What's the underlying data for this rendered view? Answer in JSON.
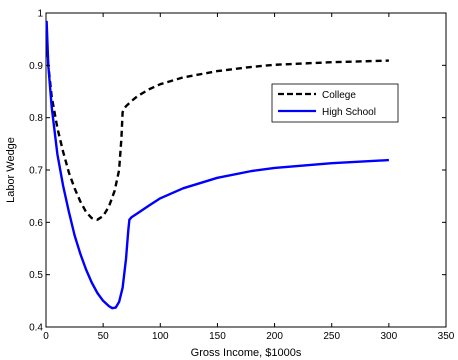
{
  "chart_data": {
    "type": "line",
    "title": "",
    "xlabel": "Gross Income, $1000s",
    "ylabel": "Labor Wedge",
    "xlim": [
      0,
      350
    ],
    "ylim": [
      0.4,
      1.0
    ],
    "xticks": [
      0,
      50,
      100,
      150,
      200,
      250,
      300,
      350
    ],
    "yticks": [
      0.4,
      0.5,
      0.6,
      0.7,
      0.8,
      0.9,
      1.0
    ],
    "xtick_labels": [
      "0",
      "50",
      "100",
      "150",
      "200",
      "250",
      "300",
      "350"
    ],
    "ytick_labels": [
      "0.4",
      "0.5",
      "0.6",
      "0.7",
      "0.8",
      "0.9",
      "1"
    ],
    "grid": false,
    "legend_position": "upper-right",
    "series": [
      {
        "name": "College",
        "style": "dashed",
        "color": "#000000",
        "x": [
          0.5,
          2,
          5,
          10,
          15,
          20,
          25,
          30,
          35,
          40,
          45,
          50,
          55,
          60,
          64,
          66,
          67,
          68,
          70,
          75,
          80,
          90,
          100,
          120,
          150,
          180,
          200,
          250,
          300
        ],
        "y": [
          0.965,
          0.9,
          0.84,
          0.78,
          0.735,
          0.695,
          0.665,
          0.64,
          0.62,
          0.608,
          0.605,
          0.612,
          0.63,
          0.66,
          0.7,
          0.76,
          0.81,
          0.816,
          0.822,
          0.832,
          0.841,
          0.854,
          0.864,
          0.877,
          0.889,
          0.897,
          0.901,
          0.906,
          0.909
        ]
      },
      {
        "name": "High School",
        "style": "solid",
        "color": "#0000ff",
        "x": [
          0.5,
          2,
          5,
          10,
          15,
          20,
          25,
          30,
          35,
          40,
          45,
          50,
          55,
          58,
          61,
          64,
          67,
          70,
          72,
          73,
          75,
          80,
          90,
          100,
          120,
          150,
          180,
          200,
          250,
          300
        ],
        "y": [
          0.985,
          0.9,
          0.82,
          0.73,
          0.67,
          0.62,
          0.575,
          0.54,
          0.51,
          0.485,
          0.465,
          0.45,
          0.44,
          0.436,
          0.437,
          0.448,
          0.475,
          0.53,
          0.585,
          0.605,
          0.61,
          0.617,
          0.632,
          0.646,
          0.665,
          0.685,
          0.698,
          0.704,
          0.713,
          0.719
        ]
      }
    ]
  }
}
